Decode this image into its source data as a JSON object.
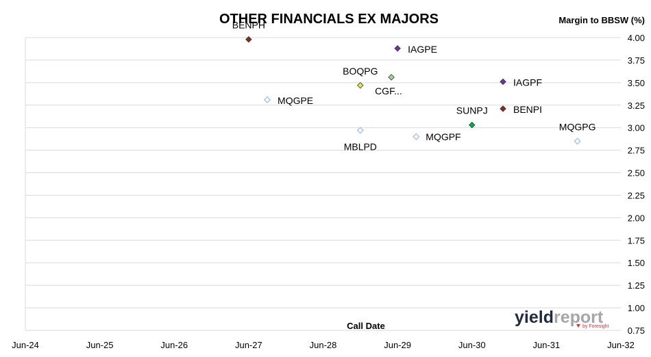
{
  "chart_data": {
    "type": "scatter",
    "title": "OTHER FINANCIALS EX MAJORS",
    "ylabel": "Margin to BBSW (%)",
    "xlabel": "Call Date",
    "x_ticks": [
      "Jun-24",
      "Jun-25",
      "Jun-26",
      "Jun-27",
      "Jun-28",
      "Jun-29",
      "Jun-30",
      "Jun-31",
      "Jun-32"
    ],
    "y_ticks": [
      "0.75",
      "1.00",
      "1.25",
      "1.50",
      "1.75",
      "2.00",
      "2.25",
      "2.50",
      "2.75",
      "3.00",
      "3.25",
      "3.50",
      "3.75",
      "4.00"
    ],
    "xlim": [
      "Jun-24",
      "Jun-32"
    ],
    "ylim": [
      0.75,
      4.0
    ],
    "grid": "horizontal",
    "points": [
      {
        "label": "BENPH",
        "x": "2027-06",
        "y": 3.98,
        "color": "#8B2A1A",
        "fill": true
      },
      {
        "label": "IAGPE",
        "x": "2029-06",
        "y": 3.88,
        "color": "#7030A0",
        "fill": true
      },
      {
        "label": "CGF...",
        "x": "2029-05",
        "y": 3.56,
        "color": "#A9D18E",
        "fill": true
      },
      {
        "label": "BOQPG",
        "x": "2028-12",
        "y": 3.47,
        "color": "#E6E645",
        "fill": true
      },
      {
        "label": "IAGPF",
        "x": "2030-11",
        "y": 3.51,
        "color": "#7030A0",
        "fill": true
      },
      {
        "label": "MQGPE",
        "x": "2027-09",
        "y": 3.31,
        "color": "#B4C7E7",
        "fill": false
      },
      {
        "label": "BENPI",
        "x": "2030-11",
        "y": 3.21,
        "color": "#8B2A1A",
        "fill": true
      },
      {
        "label": "SUNPJ",
        "x": "2030-06",
        "y": 3.03,
        "color": "#00B050",
        "fill": true
      },
      {
        "label": "MBLPD",
        "x": "2028-12",
        "y": 2.97,
        "color": "#B4C7E7",
        "fill": false
      },
      {
        "label": "MQGPF",
        "x": "2029-09",
        "y": 2.9,
        "color": "#B4C7E7",
        "fill": false
      },
      {
        "label": "MQGPG",
        "x": "2031-11",
        "y": 2.85,
        "color": "#B4C7E7",
        "fill": false
      }
    ]
  },
  "logo": {
    "main_a": "yield",
    "main_b": "report",
    "sub": "by Foresight"
  }
}
